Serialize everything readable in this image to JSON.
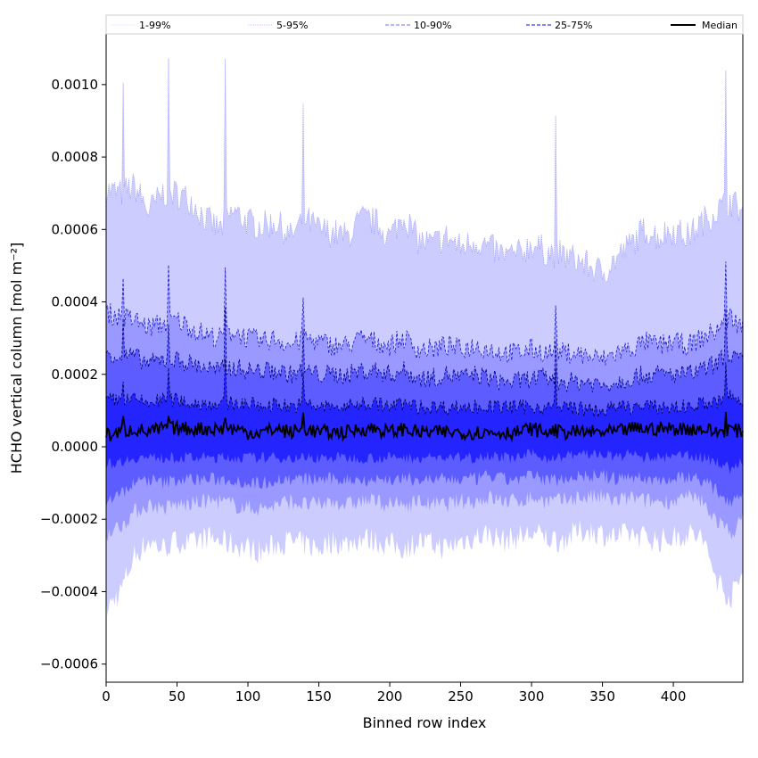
{
  "chart_data": {
    "type": "area",
    "title": "",
    "xlabel": "Binned row index",
    "ylabel": "HCHO vertical column [mol m⁻²]",
    "xlim": [
      0,
      449
    ],
    "ylim": [
      -0.00065,
      0.00114
    ],
    "xticks": [
      0,
      50,
      100,
      150,
      200,
      250,
      300,
      350,
      400
    ],
    "xtick_labels": [
      "0",
      "50",
      "100",
      "150",
      "200",
      "250",
      "300",
      "350",
      "400"
    ],
    "yticks": [
      -0.0006,
      -0.0004,
      -0.0002,
      0.0,
      0.0002,
      0.0004,
      0.0006,
      0.0008,
      0.001
    ],
    "ytick_labels": [
      "−0.0006",
      "−0.0004",
      "−0.0002",
      "0.0000",
      "0.0002",
      "0.0004",
      "0.0006",
      "0.0008",
      "0.0010"
    ],
    "grid": false,
    "legend_position": "top",
    "legend": [
      {
        "label": "1-99%",
        "color": "#e0e0ff",
        "style": "solid-thin"
      },
      {
        "label": "5-95%",
        "color": "#b8b8ff",
        "style": "dotted"
      },
      {
        "label": "10-90%",
        "color": "#8a8aff",
        "style": "dashed"
      },
      {
        "label": "25-75%",
        "color": "#5a5aff",
        "style": "dashed"
      },
      {
        "label": "Median",
        "color": "#000000",
        "style": "solid"
      }
    ],
    "band_fill_colors": [
      "#ccccff",
      "#9999ff",
      "#5c5cff",
      "#2424ff"
    ],
    "x": [
      0,
      10,
      20,
      30,
      40,
      50,
      60,
      70,
      80,
      90,
      100,
      110,
      120,
      130,
      140,
      150,
      160,
      170,
      180,
      190,
      200,
      210,
      220,
      230,
      240,
      250,
      260,
      270,
      280,
      290,
      300,
      310,
      320,
      330,
      340,
      350,
      360,
      370,
      380,
      390,
      400,
      410,
      420,
      430,
      440,
      449
    ],
    "series": [
      {
        "name": "1-99%",
        "lower": [
          -0.00045,
          -0.0004,
          -0.0003,
          -0.00026,
          -0.00028,
          -0.00026,
          -0.00027,
          -0.00025,
          -0.00026,
          -0.00027,
          -0.00028,
          -0.00029,
          -0.00027,
          -0.00026,
          -0.00027,
          -0.00028,
          -0.00026,
          -0.00027,
          -0.00025,
          -0.00026,
          -0.00027,
          -0.00028,
          -0.00026,
          -0.00027,
          -0.00028,
          -0.00026,
          -0.00025,
          -0.00024,
          -0.00026,
          -0.00025,
          -0.00024,
          -0.00025,
          -0.00026,
          -0.00024,
          -0.00023,
          -0.00024,
          -0.00025,
          -0.00024,
          -0.00025,
          -0.00026,
          -0.00025,
          -0.00024,
          -0.00025,
          -0.00036,
          -0.00042,
          -0.00035
        ],
        "upper": [
          0.00071,
          0.0007,
          0.00072,
          0.00065,
          0.0007,
          0.0007,
          0.00068,
          0.00063,
          0.0006,
          0.00065,
          0.00062,
          0.00061,
          0.00062,
          0.00058,
          0.00063,
          0.0006,
          0.00059,
          0.00058,
          0.00063,
          0.00062,
          0.00058,
          0.00064,
          0.00057,
          0.00056,
          0.00058,
          0.00055,
          0.00057,
          0.00055,
          0.00053,
          0.00053,
          0.00056,
          0.00054,
          0.00053,
          0.00052,
          0.0005,
          0.00048,
          0.00052,
          0.00056,
          0.0006,
          0.00058,
          0.0006,
          0.00058,
          0.00062,
          0.00065,
          0.00068,
          0.00065
        ]
      },
      {
        "name": "5-95%",
        "lower": [
          -0.00024,
          -0.00022,
          -0.00018,
          -0.00016,
          -0.00017,
          -0.00016,
          -0.00016,
          -0.00015,
          -0.00015,
          -0.00016,
          -0.00017,
          -0.00017,
          -0.00016,
          -0.00015,
          -0.00016,
          -0.00016,
          -0.00015,
          -0.00016,
          -0.00015,
          -0.00015,
          -0.00016,
          -0.00016,
          -0.00015,
          -0.00016,
          -0.00016,
          -0.00015,
          -0.00015,
          -0.00014,
          -0.00015,
          -0.00015,
          -0.00014,
          -0.00015,
          -0.00015,
          -0.00014,
          -0.00014,
          -0.00014,
          -0.00015,
          -0.00014,
          -0.00015,
          -0.00015,
          -0.00015,
          -0.00014,
          -0.00015,
          -0.0002,
          -0.00024,
          -0.0002
        ],
        "upper": [
          0.00037,
          0.00036,
          0.00035,
          0.00033,
          0.00034,
          0.00035,
          0.00033,
          0.00031,
          0.0003,
          0.00032,
          0.0003,
          0.00029,
          0.0003,
          0.00028,
          0.0003,
          0.00029,
          0.00028,
          0.00028,
          0.0003,
          0.00029,
          0.00028,
          0.0003,
          0.00027,
          0.00027,
          0.00028,
          0.00027,
          0.00028,
          0.00027,
          0.00026,
          0.00026,
          0.00027,
          0.00026,
          0.00026,
          0.00026,
          0.00025,
          0.00024,
          0.00026,
          0.00027,
          0.00029,
          0.00028,
          0.00029,
          0.00028,
          0.0003,
          0.00032,
          0.00036,
          0.00033
        ]
      },
      {
        "name": "10-90%",
        "lower": [
          -0.00015,
          -0.00013,
          -0.0001,
          -9e-05,
          -0.0001,
          -9e-05,
          -9e-05,
          -9e-05,
          -9e-05,
          -9e-05,
          -0.0001,
          -0.0001,
          -9e-05,
          -9e-05,
          -9e-05,
          -9e-05,
          -9e-05,
          -9e-05,
          -9e-05,
          -9e-05,
          -9e-05,
          -9e-05,
          -9e-05,
          -9e-05,
          -9e-05,
          -9e-05,
          -9e-05,
          -8e-05,
          -9e-05,
          -9e-05,
          -8e-05,
          -9e-05,
          -9e-05,
          -8e-05,
          -8e-05,
          -8e-05,
          -9e-05,
          -8e-05,
          -9e-05,
          -9e-05,
          -9e-05,
          -8e-05,
          -9e-05,
          -0.00012,
          -0.00015,
          -0.00012
        ],
        "upper": [
          0.00026,
          0.00025,
          0.00025,
          0.00023,
          0.00024,
          0.00024,
          0.00023,
          0.00022,
          0.00021,
          0.00022,
          0.00021,
          0.00021,
          0.00021,
          0.0002,
          0.00021,
          0.0002,
          0.0002,
          0.0002,
          0.00021,
          0.00021,
          0.0002,
          0.00021,
          0.00019,
          0.00019,
          0.0002,
          0.00019,
          0.0002,
          0.00019,
          0.00018,
          0.00018,
          0.00019,
          0.00019,
          0.00018,
          0.00018,
          0.00018,
          0.00017,
          0.00018,
          0.00019,
          0.0002,
          0.0002,
          0.0002,
          0.0002,
          0.00021,
          0.00023,
          0.00026,
          0.00023
        ]
      },
      {
        "name": "25-75%",
        "lower": [
          -5e-05,
          -4e-05,
          -3e-05,
          -3e-05,
          -3e-05,
          -3e-05,
          -3e-05,
          -3e-05,
          -3e-05,
          -3e-05,
          -3e-05,
          -3e-05,
          -3e-05,
          -3e-05,
          -3e-05,
          -3e-05,
          -3e-05,
          -3e-05,
          -3e-05,
          -3e-05,
          -3e-05,
          -3e-05,
          -3e-05,
          -3e-05,
          -3e-05,
          -3e-05,
          -3e-05,
          -2e-05,
          -3e-05,
          -3e-05,
          -2e-05,
          -3e-05,
          -3e-05,
          -2e-05,
          -2e-05,
          -2e-05,
          -3e-05,
          -2e-05,
          -3e-05,
          -3e-05,
          -3e-05,
          -2e-05,
          -3e-05,
          -4e-05,
          -6e-05,
          -4e-05
        ],
        "upper": [
          0.00013,
          0.00013,
          0.00013,
          0.00012,
          0.00013,
          0.00013,
          0.00012,
          0.00012,
          0.00012,
          0.00012,
          0.00012,
          0.00011,
          0.00012,
          0.00011,
          0.00012,
          0.00011,
          0.00011,
          0.00011,
          0.00012,
          0.00012,
          0.00011,
          0.00012,
          0.00011,
          0.00011,
          0.00011,
          0.00011,
          0.00011,
          0.00011,
          0.00011,
          0.00011,
          0.00011,
          0.00011,
          0.00011,
          0.00011,
          0.0001,
          0.0001,
          0.00011,
          0.00011,
          0.00011,
          0.00011,
          0.00011,
          0.00011,
          0.00012,
          0.00012,
          0.00014,
          0.00012
        ]
      },
      {
        "name": "Median",
        "values": [
          3e-05,
          4e-05,
          5e-05,
          4e-05,
          5e-05,
          5e-05,
          5e-05,
          5e-05,
          5e-05,
          5e-05,
          4e-05,
          4e-05,
          5e-05,
          4e-05,
          5e-05,
          4e-05,
          4e-05,
          4e-05,
          5e-05,
          5e-05,
          4e-05,
          5e-05,
          4e-05,
          4e-05,
          4e-05,
          4e-05,
          4e-05,
          4e-05,
          4e-05,
          4e-05,
          5e-05,
          4e-05,
          4e-05,
          4e-05,
          4e-05,
          4e-05,
          4e-05,
          5e-05,
          5e-05,
          5e-05,
          5e-05,
          5e-05,
          5e-05,
          4e-05,
          5e-05,
          4e-05
        ]
      }
    ],
    "spikes": [
      {
        "x": 12,
        "upper": 0.00097
      },
      {
        "x": 44,
        "upper": 0.00103
      },
      {
        "x": 84,
        "upper": 0.00106
      },
      {
        "x": 139,
        "upper": 0.00091
      },
      {
        "x": 317,
        "upper": 0.00088
      },
      {
        "x": 437,
        "upper": 0.00105
      }
    ]
  }
}
